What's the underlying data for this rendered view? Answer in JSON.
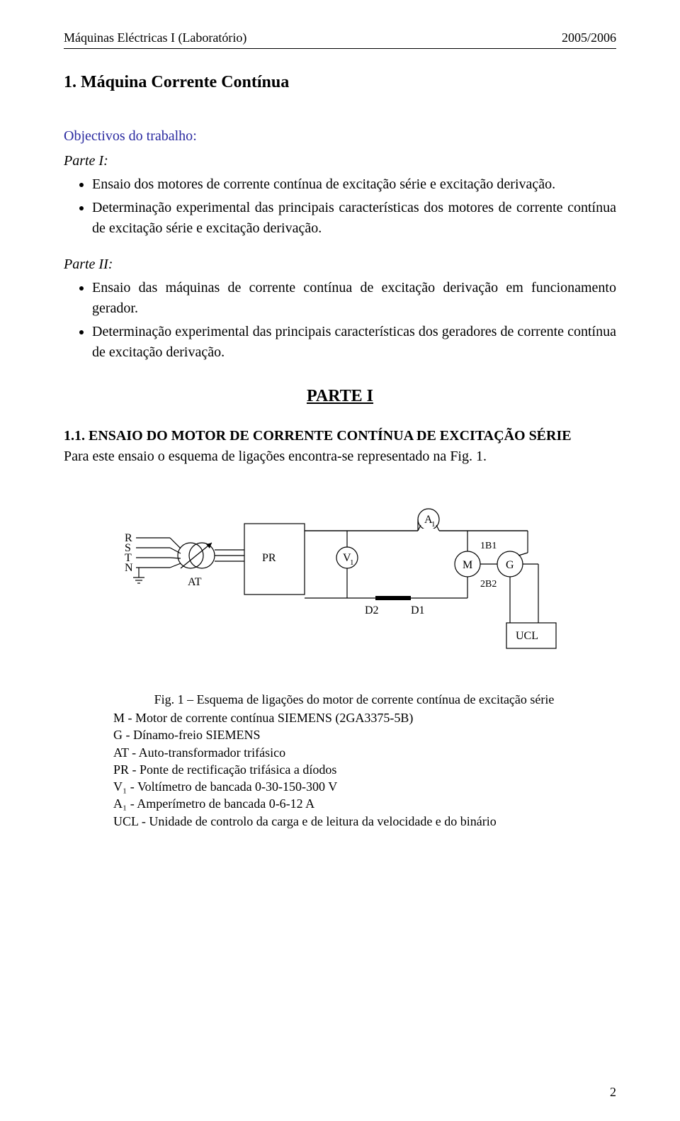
{
  "header": {
    "left": "Máquinas Eléctricas I (Laboratório)",
    "right": "2005/2006"
  },
  "title": "1. Máquina Corrente Contínua",
  "objectives_label": "Objectivos do trabalho",
  "part1_label": "Parte I",
  "part1_items": [
    "Ensaio dos motores de corrente contínua de excitação série e excitação derivação.",
    "Determinação experimental das principais características dos motores de corrente contínua de excitação série e excitação derivação."
  ],
  "part2_label": "Parte II",
  "part2_items": [
    "Ensaio das máquinas de corrente contínua de excitação derivação em funcionamento gerador.",
    "Determinação experimental das principais características dos geradores de corrente contínua de excitação derivação."
  ],
  "parte_heading": "PARTE I",
  "section_1_1_title": "1.1. ENSAIO DO MOTOR DE CORRENTE CONTÍNUA DE EXCITAÇÃO SÉRIE",
  "section_1_1_text": "Para este ensaio o esquema de ligações encontra-se representado na Fig. 1.",
  "figure": {
    "type": "circuit-diagram",
    "stroke_color": "#000000",
    "background_color": "#ffffff",
    "stroke_width": 1.2,
    "font_family": "Times New Roman",
    "font_size": 16,
    "sub_font_size": 11,
    "labels": {
      "R": "R",
      "S": "S",
      "T": "T",
      "N": "N",
      "AT": "AT",
      "PR": "PR",
      "V1": "V",
      "V1_sub": "1",
      "A1": "A",
      "A1_sub": "1",
      "M": "M",
      "G": "G",
      "D1": "D1",
      "D2": "D2",
      "B1": "1B1",
      "B2": "2B2",
      "UCL": "UCL"
    }
  },
  "caption": {
    "first": "Fig. 1 – Esquema de ligações do motor de corrente contínua de excitação série",
    "lines": [
      "M - Motor de corrente contínua SIEMENS (2GA3375-5B)",
      "G - Dínamo-freio SIEMENS",
      "AT - Auto-transformador trifásico",
      "PR - Ponte de rectificação trifásica a díodos",
      "V₁ - Voltímetro de bancada 0-30-150-300 V",
      "A₁ - Amperímetro de bancada 0-6-12 A",
      "UCL - Unidade de controlo da carga e de leitura da velocidade e do binário"
    ]
  },
  "page_number": "2"
}
